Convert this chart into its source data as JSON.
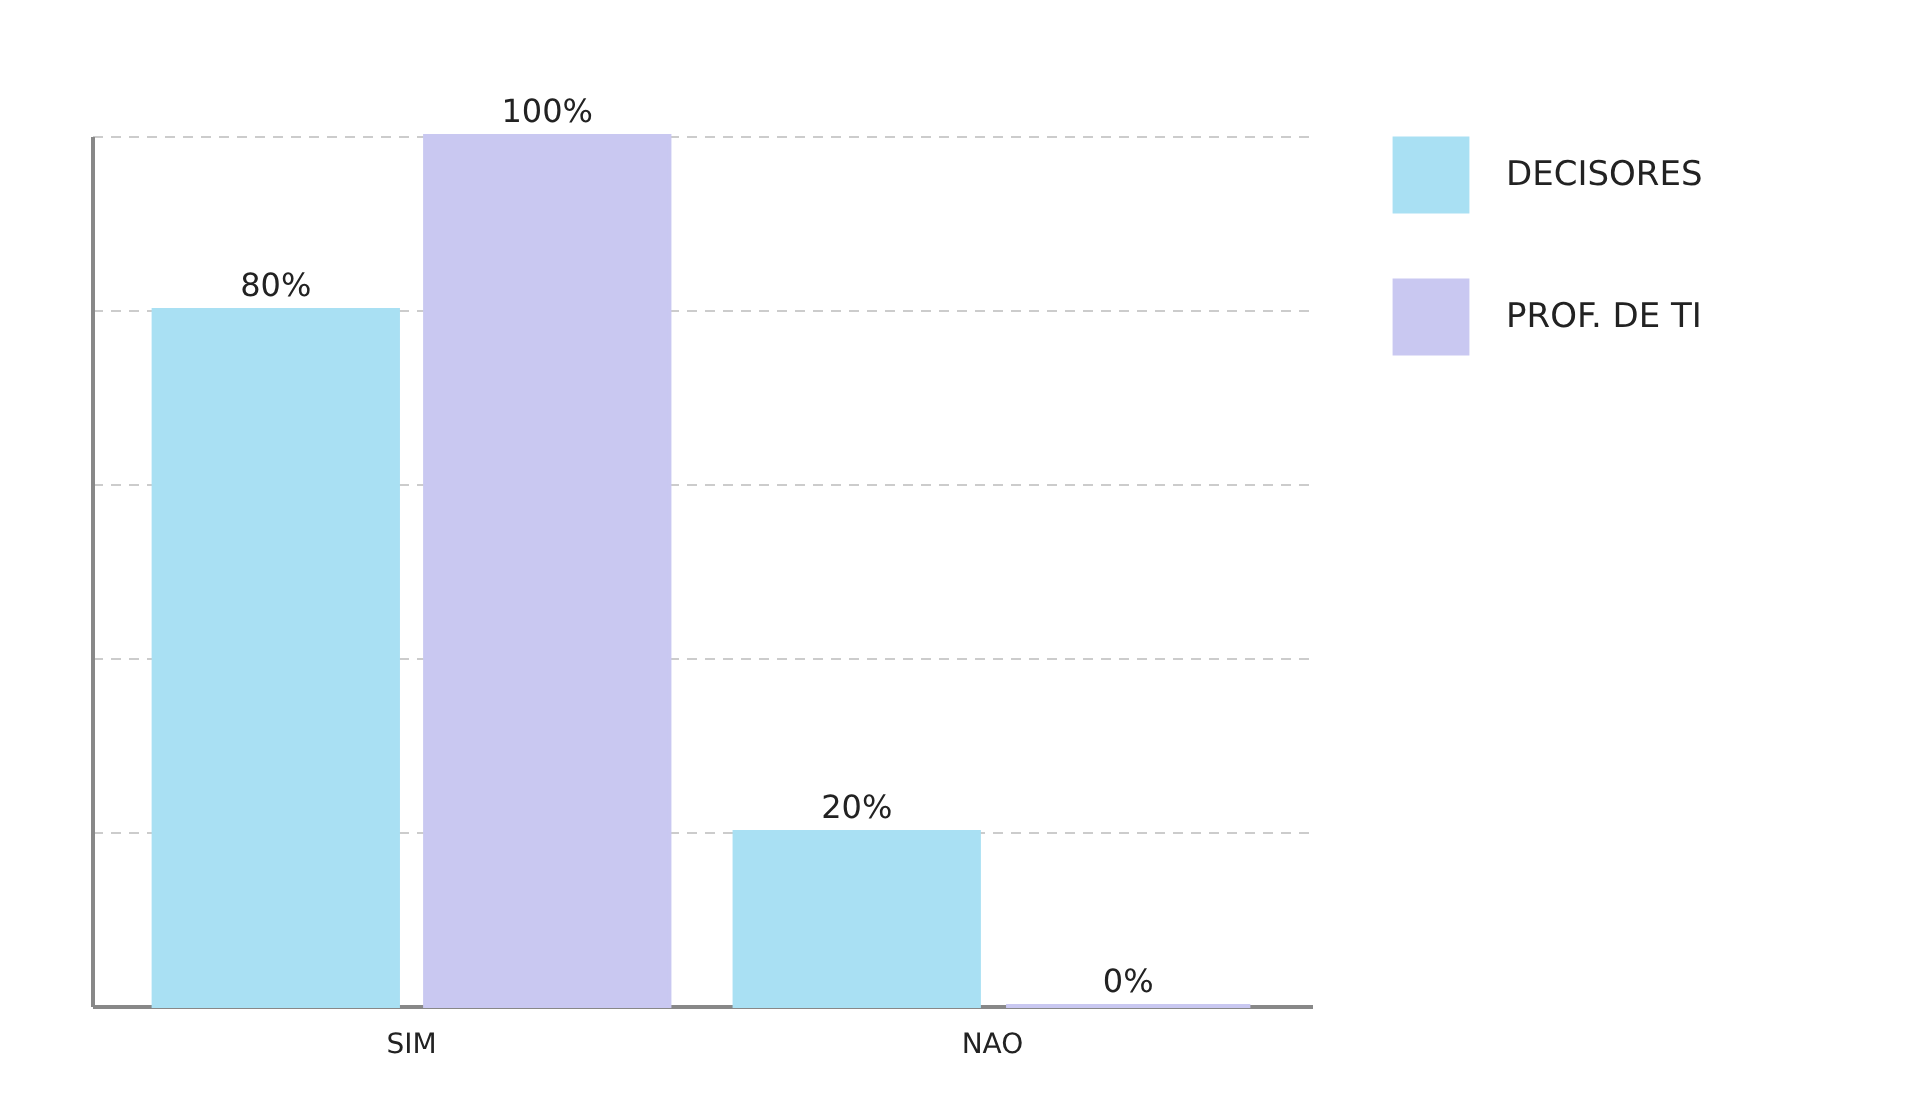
{
  "chart_data": {
    "type": "bar",
    "categories": [
      "SIM",
      "NAO"
    ],
    "series": [
      {
        "name": "DECISORES",
        "color": "#a9e0f3",
        "values": [
          80,
          20
        ],
        "value_labels": [
          "80%",
          "20%"
        ]
      },
      {
        "name": "PROF. DE TI",
        "color": "#c9c8f1",
        "values": [
          100,
          0
        ],
        "value_labels": [
          "100%",
          "0%"
        ]
      }
    ],
    "grid": "y",
    "legend": "right",
    "tick_labels": "x"
  }
}
